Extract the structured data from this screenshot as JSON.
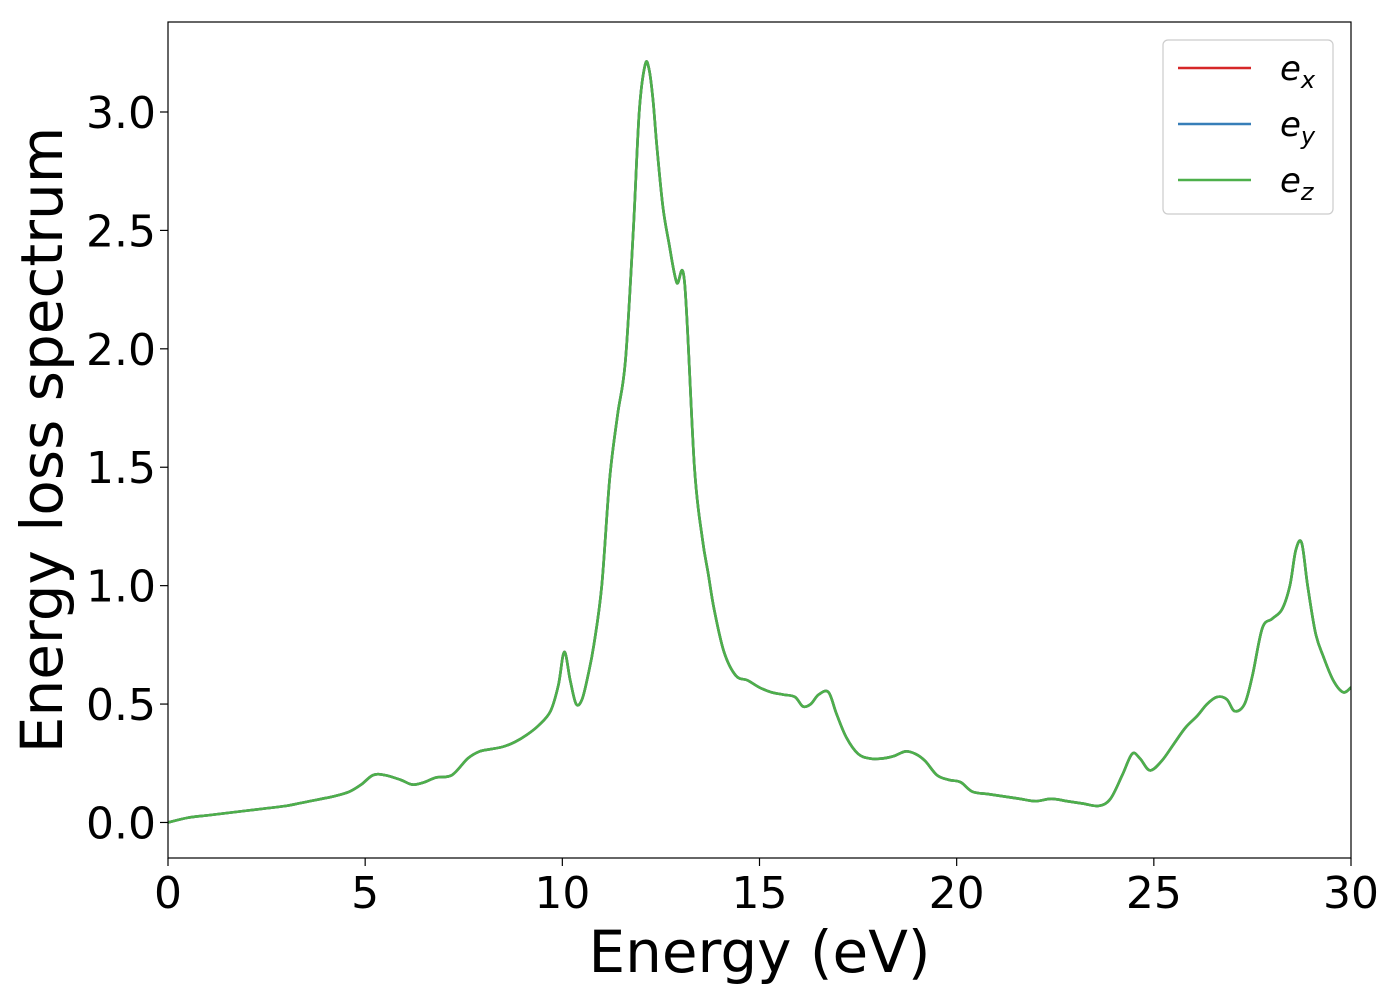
{
  "chart_data": {
    "type": "line",
    "title": "",
    "xlabel": "Energy (eV)",
    "ylabel": "Energy loss spectrum",
    "xlim": [
      0,
      30
    ],
    "ylim": [
      -0.15,
      3.38
    ],
    "xticks": [
      0,
      5,
      10,
      15,
      20,
      25,
      30
    ],
    "xtick_labels": [
      "0",
      "5",
      "10",
      "15",
      "20",
      "25",
      "30"
    ],
    "yticks": [
      0.0,
      0.5,
      1.0,
      1.5,
      2.0,
      2.5,
      3.0
    ],
    "ytick_labels": [
      "0.0",
      "0.5",
      "1.0",
      "1.5",
      "2.0",
      "2.5",
      "3.0"
    ],
    "grid": false,
    "legend_position": "top-right",
    "x": [
      0,
      0.5,
      1,
      1.5,
      2,
      2.5,
      3,
      3.3,
      3.6,
      3.9,
      4.2,
      4.6,
      4.9,
      5.2,
      5.5,
      5.9,
      6.2,
      6.5,
      6.8,
      7.2,
      7.6,
      7.9,
      8.2,
      8.5,
      8.8,
      9.1,
      9.4,
      9.7,
      9.9,
      10.05,
      10.2,
      10.35,
      10.5,
      10.65,
      10.8,
      11.0,
      11.2,
      11.4,
      11.6,
      11.8,
      11.95,
      12.1,
      12.2,
      12.3,
      12.4,
      12.55,
      12.7,
      12.9,
      13.1,
      13.35,
      13.55,
      13.7,
      13.85,
      14.1,
      14.4,
      14.7,
      15.0,
      15.3,
      15.6,
      15.9,
      16.1,
      16.3,
      16.5,
      16.75,
      16.95,
      17.2,
      17.5,
      17.8,
      18.1,
      18.4,
      18.7,
      18.95,
      19.2,
      19.5,
      19.8,
      20.1,
      20.4,
      20.8,
      21.2,
      21.6,
      22.0,
      22.4,
      22.8,
      23.2,
      23.6,
      23.9,
      24.2,
      24.45,
      24.65,
      24.9,
      25.2,
      25.5,
      25.8,
      26.1,
      26.35,
      26.6,
      26.85,
      27.05,
      27.3,
      27.5,
      27.75,
      28.0,
      28.25,
      28.45,
      28.6,
      28.75,
      28.9,
      29.1,
      29.3,
      29.55,
      29.8,
      30.0
    ],
    "series": [
      {
        "name": "e_x",
        "color": "#d62728",
        "values": [
          0.0,
          0.02,
          0.03,
          0.04,
          0.05,
          0.06,
          0.07,
          0.08,
          0.09,
          0.1,
          0.11,
          0.13,
          0.16,
          0.2,
          0.2,
          0.18,
          0.16,
          0.17,
          0.19,
          0.2,
          0.27,
          0.3,
          0.31,
          0.32,
          0.34,
          0.37,
          0.41,
          0.47,
          0.58,
          0.72,
          0.6,
          0.5,
          0.52,
          0.62,
          0.75,
          1.0,
          1.45,
          1.72,
          1.95,
          2.5,
          3.0,
          3.2,
          3.18,
          3.05,
          2.85,
          2.6,
          2.45,
          2.28,
          2.28,
          1.5,
          1.2,
          1.05,
          0.9,
          0.72,
          0.62,
          0.6,
          0.57,
          0.55,
          0.54,
          0.53,
          0.49,
          0.5,
          0.54,
          0.55,
          0.46,
          0.36,
          0.29,
          0.27,
          0.27,
          0.28,
          0.3,
          0.29,
          0.26,
          0.2,
          0.18,
          0.17,
          0.13,
          0.12,
          0.11,
          0.1,
          0.09,
          0.1,
          0.09,
          0.08,
          0.07,
          0.1,
          0.2,
          0.29,
          0.27,
          0.22,
          0.26,
          0.33,
          0.4,
          0.45,
          0.5,
          0.53,
          0.52,
          0.47,
          0.5,
          0.62,
          0.82,
          0.86,
          0.9,
          1.0,
          1.15,
          1.18,
          1.0,
          0.8,
          0.7,
          0.6,
          0.55,
          0.57
        ]
      },
      {
        "name": "e_y",
        "color": "#377eb8",
        "values": [
          0.0,
          0.02,
          0.03,
          0.04,
          0.05,
          0.06,
          0.07,
          0.08,
          0.09,
          0.1,
          0.11,
          0.13,
          0.16,
          0.2,
          0.2,
          0.18,
          0.16,
          0.17,
          0.19,
          0.2,
          0.27,
          0.3,
          0.31,
          0.32,
          0.34,
          0.37,
          0.41,
          0.47,
          0.58,
          0.72,
          0.6,
          0.5,
          0.52,
          0.62,
          0.75,
          1.0,
          1.45,
          1.72,
          1.95,
          2.5,
          3.0,
          3.2,
          3.18,
          3.05,
          2.85,
          2.6,
          2.45,
          2.28,
          2.28,
          1.5,
          1.2,
          1.05,
          0.9,
          0.72,
          0.62,
          0.6,
          0.57,
          0.55,
          0.54,
          0.53,
          0.49,
          0.5,
          0.54,
          0.55,
          0.46,
          0.36,
          0.29,
          0.27,
          0.27,
          0.28,
          0.3,
          0.29,
          0.26,
          0.2,
          0.18,
          0.17,
          0.13,
          0.12,
          0.11,
          0.1,
          0.09,
          0.1,
          0.09,
          0.08,
          0.07,
          0.1,
          0.2,
          0.29,
          0.27,
          0.22,
          0.26,
          0.33,
          0.4,
          0.45,
          0.5,
          0.53,
          0.52,
          0.47,
          0.5,
          0.62,
          0.82,
          0.86,
          0.9,
          1.0,
          1.15,
          1.18,
          1.0,
          0.8,
          0.7,
          0.6,
          0.55,
          0.57
        ]
      },
      {
        "name": "e_z",
        "color": "#4daf4a",
        "values": [
          0.0,
          0.02,
          0.03,
          0.04,
          0.05,
          0.06,
          0.07,
          0.08,
          0.09,
          0.1,
          0.11,
          0.13,
          0.16,
          0.2,
          0.2,
          0.18,
          0.16,
          0.17,
          0.19,
          0.2,
          0.27,
          0.3,
          0.31,
          0.32,
          0.34,
          0.37,
          0.41,
          0.47,
          0.58,
          0.72,
          0.6,
          0.5,
          0.52,
          0.62,
          0.75,
          1.0,
          1.45,
          1.72,
          1.95,
          2.5,
          3.0,
          3.2,
          3.18,
          3.05,
          2.85,
          2.6,
          2.45,
          2.28,
          2.28,
          1.5,
          1.2,
          1.05,
          0.9,
          0.72,
          0.62,
          0.6,
          0.57,
          0.55,
          0.54,
          0.53,
          0.49,
          0.5,
          0.54,
          0.55,
          0.46,
          0.36,
          0.29,
          0.27,
          0.27,
          0.28,
          0.3,
          0.29,
          0.26,
          0.2,
          0.18,
          0.17,
          0.13,
          0.12,
          0.11,
          0.1,
          0.09,
          0.1,
          0.09,
          0.08,
          0.07,
          0.1,
          0.2,
          0.29,
          0.27,
          0.22,
          0.26,
          0.33,
          0.4,
          0.45,
          0.5,
          0.53,
          0.52,
          0.47,
          0.5,
          0.62,
          0.82,
          0.86,
          0.9,
          1.0,
          1.15,
          1.18,
          1.0,
          0.8,
          0.7,
          0.6,
          0.55,
          0.57
        ]
      }
    ],
    "legend": [
      {
        "base": "e",
        "sub": "x",
        "color": "#d62728"
      },
      {
        "base": "e",
        "sub": "y",
        "color": "#377eb8"
      },
      {
        "base": "e",
        "sub": "z",
        "color": "#4daf4a"
      }
    ]
  }
}
